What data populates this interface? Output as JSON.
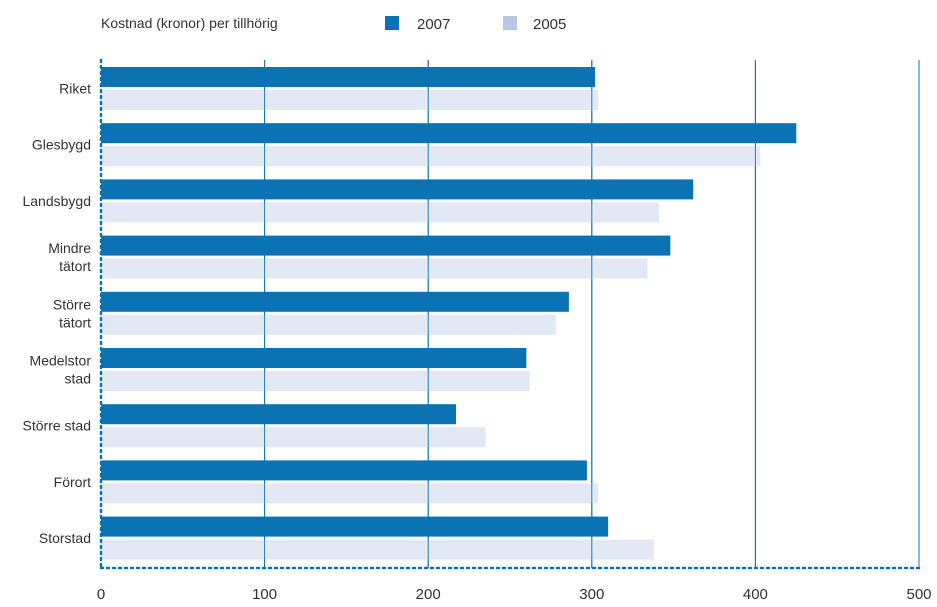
{
  "colors": {
    "primary": "#0b73b3",
    "secondary": "#e3e9f4",
    "legend_secondary": "#b8c8e2",
    "grid": "#0b73b3",
    "axis": "#0b73b3"
  },
  "chart_data": {
    "type": "bar",
    "orientation": "horizontal",
    "title": "Kostnad (kronor) per tillhörig",
    "xlabel": "",
    "ylabel": "",
    "xlim": [
      0,
      500
    ],
    "x_ticks": [
      0,
      100,
      200,
      300,
      400,
      500
    ],
    "grid": true,
    "legend_position": "top",
    "categories": [
      [
        "Riket"
      ],
      [
        "Glesbygd"
      ],
      [
        "Landsbygd"
      ],
      [
        "Mindre",
        "tätort"
      ],
      [
        "Större",
        "tätort"
      ],
      [
        "Medelstor",
        "stad"
      ],
      [
        "Större stad"
      ],
      [
        "Förort"
      ],
      [
        "Storstad"
      ]
    ],
    "series": [
      {
        "name": "2007",
        "color": "#0b73b3",
        "values": [
          302,
          425,
          362,
          348,
          286,
          260,
          217,
          297,
          310
        ]
      },
      {
        "name": "2005",
        "color": "#e3e9f4",
        "legend_color": "#b8c8e2",
        "values": [
          304,
          403,
          341,
          334,
          278,
          262,
          235,
          304,
          338
        ]
      }
    ]
  }
}
